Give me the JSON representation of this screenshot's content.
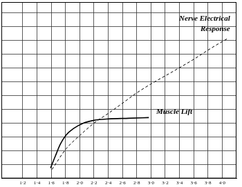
{
  "chart_data": {
    "type": "line",
    "grid": true,
    "tick_labels": "x",
    "xlim": [
      0.9,
      4.2
    ],
    "xticks": [
      {
        "value": 1.2,
        "label": "1·2"
      },
      {
        "value": 1.4,
        "label": "1·4"
      },
      {
        "value": 1.6,
        "label": "1·6"
      },
      {
        "value": 1.8,
        "label": "1·8"
      },
      {
        "value": 2.0,
        "label": "2·0"
      },
      {
        "value": 2.2,
        "label": "2·2"
      },
      {
        "value": 2.4,
        "label": "2·4"
      },
      {
        "value": 2.6,
        "label": "2·6"
      },
      {
        "value": 2.8,
        "label": "2·8"
      },
      {
        "value": 3.0,
        "label": "3·0"
      },
      {
        "value": 3.2,
        "label": "3·2"
      },
      {
        "value": 3.4,
        "label": "3·4"
      },
      {
        "value": 3.6,
        "label": "3·6"
      },
      {
        "value": 3.8,
        "label": "3·8"
      },
      {
        "value": 4.0,
        "label": "4·0"
      }
    ],
    "ylim": [
      0,
      12.75
    ],
    "yticks": [
      0,
      1,
      2,
      3,
      4,
      5,
      6,
      7,
      8,
      9,
      10,
      11,
      12
    ],
    "series": [
      {
        "name": "Nerve Electrical Response",
        "color": "#000000",
        "line_style": "dashed",
        "x": [
          1.61,
          1.81,
          2.01,
          2.2,
          2.4,
          2.59,
          2.79,
          2.99,
          3.28,
          3.58,
          3.87,
          4.07
        ],
        "values": [
          0.65,
          2.15,
          3.15,
          4.0,
          4.7,
          5.4,
          6.15,
          6.8,
          7.65,
          8.55,
          9.5,
          10.1
        ]
      },
      {
        "name": "Muscle Lift",
        "color": "#000000",
        "line_style": "solid",
        "x": [
          1.59,
          1.66,
          1.73,
          1.81,
          1.91,
          2.05,
          2.2,
          2.4,
          2.69,
          2.97
        ],
        "values": [
          0.75,
          1.65,
          2.5,
          3.15,
          3.6,
          4.0,
          4.2,
          4.3,
          4.35,
          4.4
        ]
      }
    ],
    "annotations": [
      {
        "text": "Nerve Electrical Response",
        "x": 4.11,
        "y": 11.4
      },
      {
        "text": "Muscle Lift",
        "x": 3.58,
        "y": 4.65
      }
    ]
  }
}
